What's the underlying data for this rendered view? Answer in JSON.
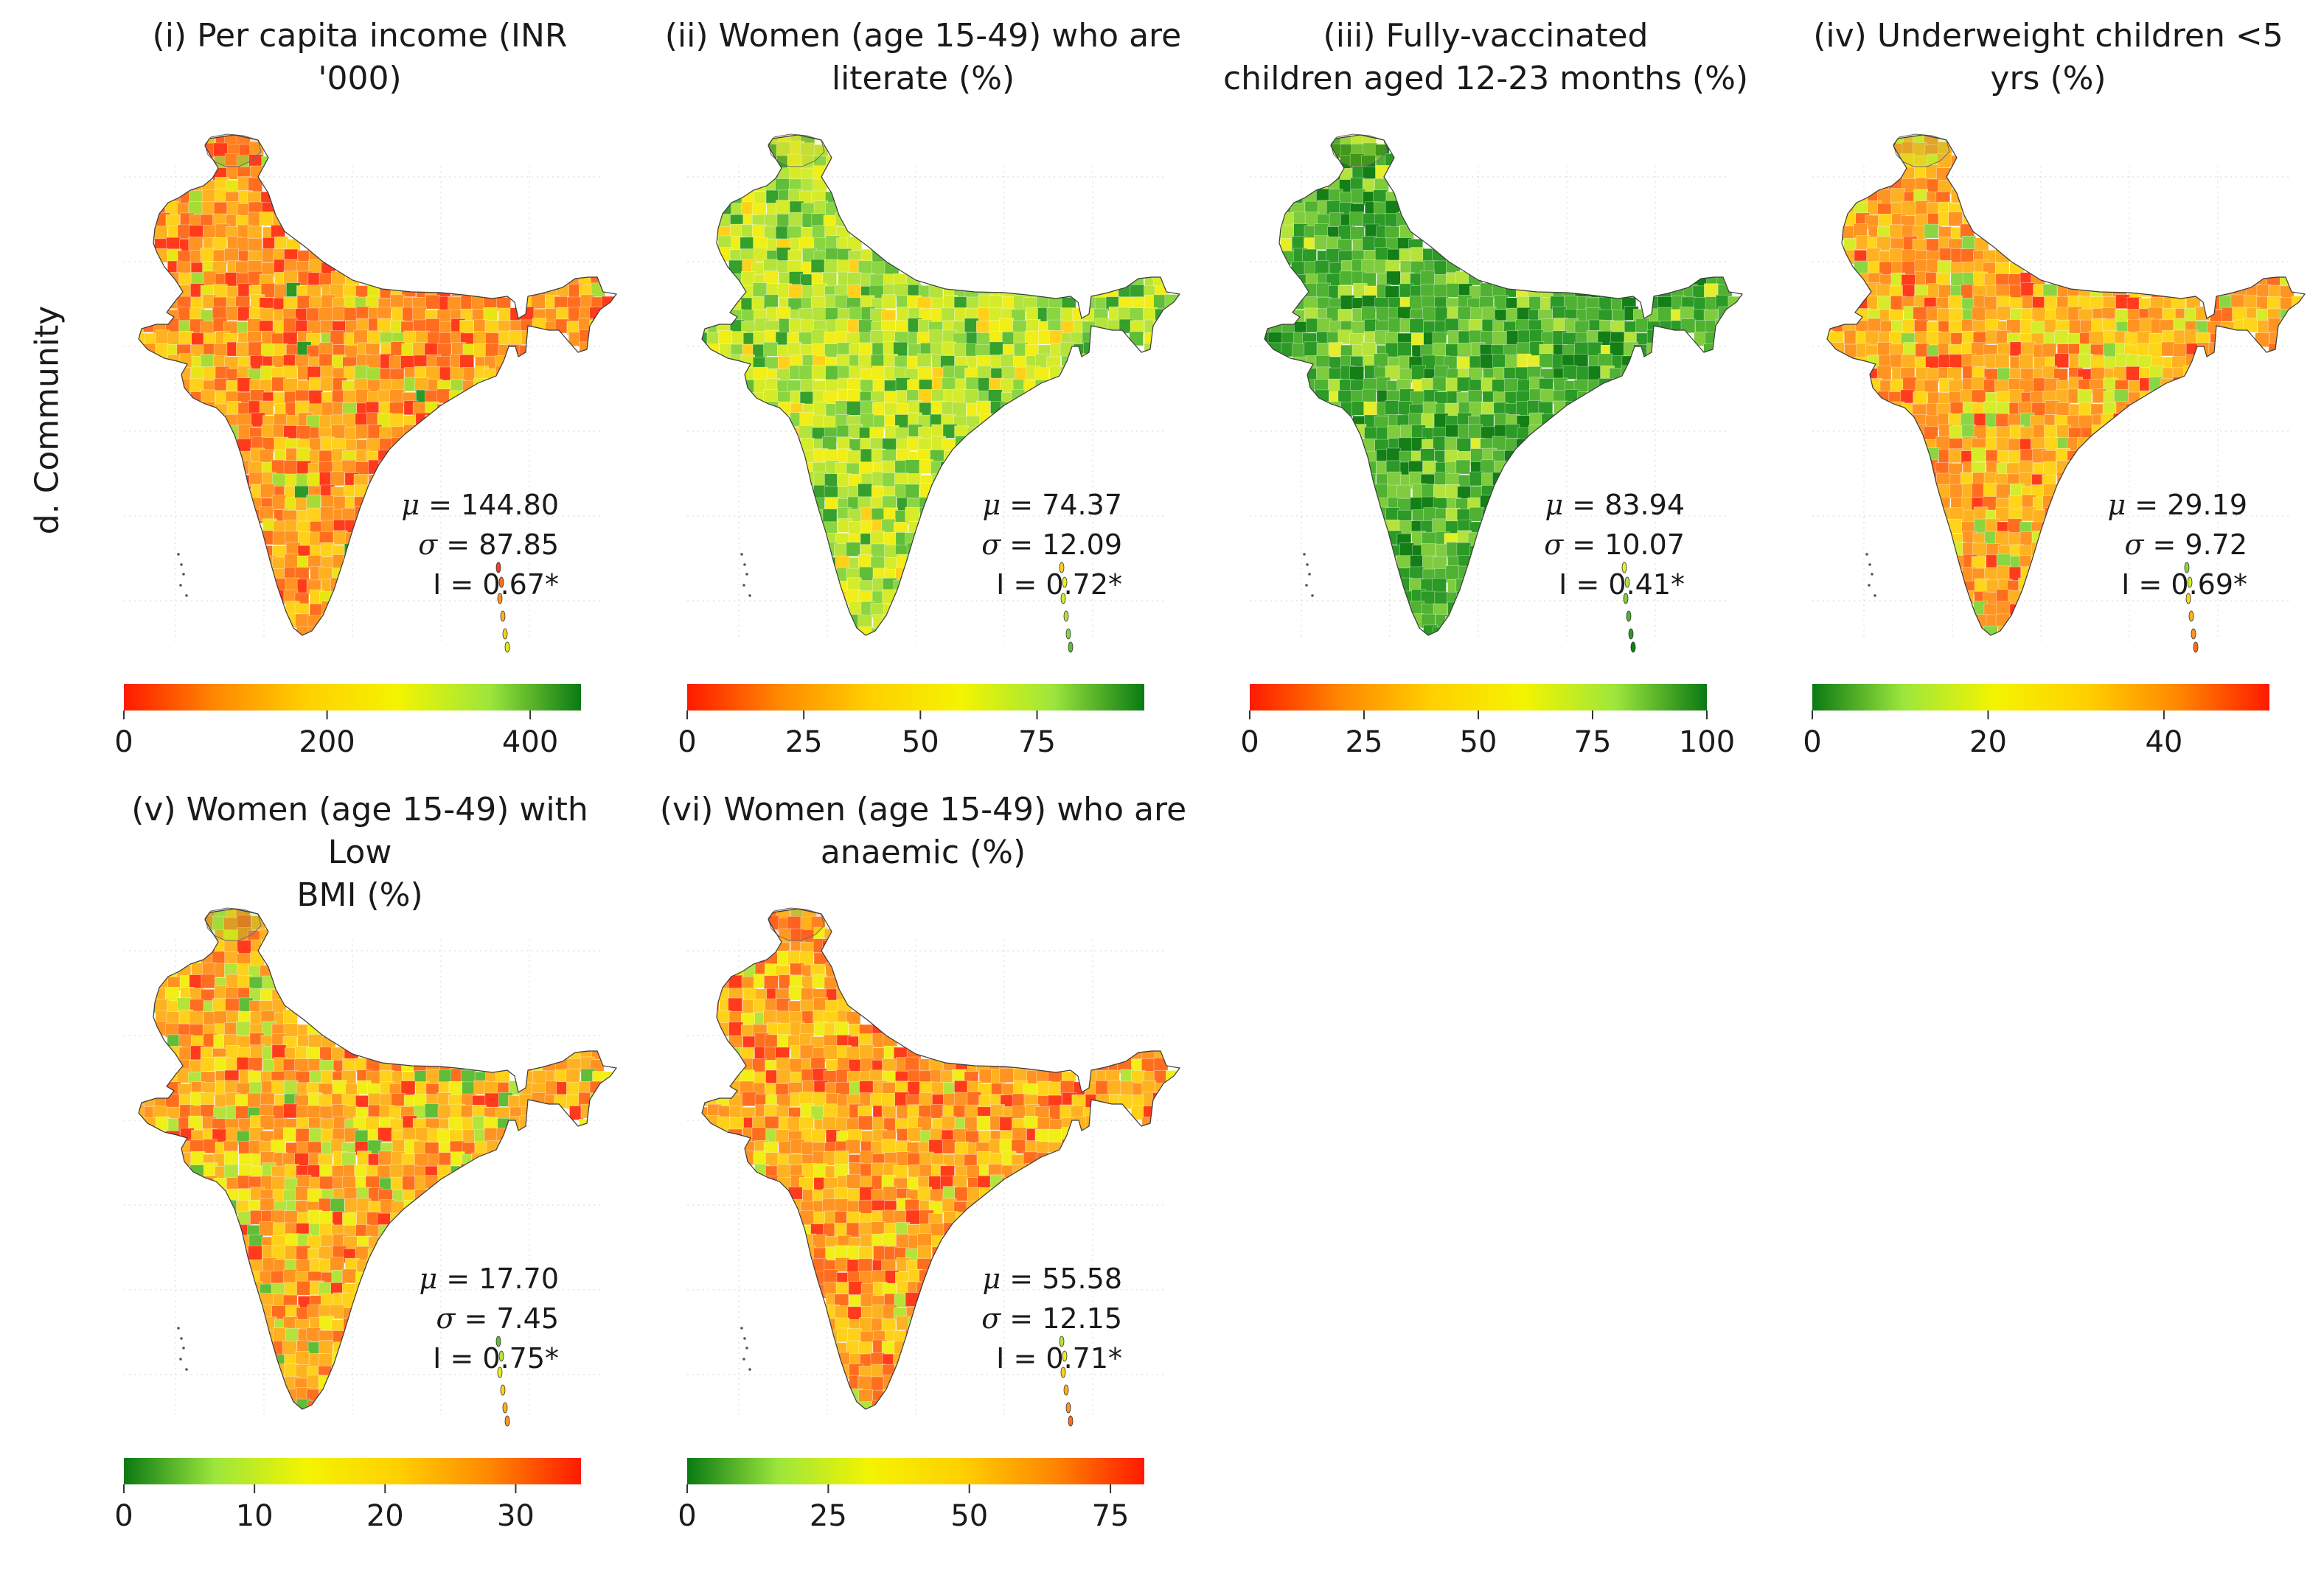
{
  "row_label": "d. Community",
  "panels": [
    {
      "title": "(i) Per capita income (INR '000)",
      "mu": "144.80",
      "sigma": "87.85",
      "moran_i": "0.67*",
      "legend": {
        "colors": [
          "#ff1a00",
          "#ff8800",
          "#ffd000",
          "#f4f400",
          "#9de63c",
          "#0a7a14"
        ],
        "ticks": [
          "0",
          "200",
          "400"
        ],
        "tick_values": [
          0,
          200,
          400
        ],
        "range": [
          0,
          450
        ]
      },
      "map_palette": [
        "#ff3b1c",
        "#ff6e1f",
        "#ff9422",
        "#ffb221",
        "#ffd11a",
        "#e8e614",
        "#a7dc36",
        "#2a9a25"
      ],
      "map_weights": [
        2,
        4,
        5,
        4,
        3,
        1,
        1,
        0.3
      ]
    },
    {
      "title": "(ii) Women (age 15-49) who are literate (%)",
      "mu": "74.37",
      "sigma": "12.09",
      "moran_i": "0.72*",
      "legend": {
        "colors": [
          "#ff1a00",
          "#ff8800",
          "#ffd000",
          "#f4f400",
          "#9de63c",
          "#0a7a14"
        ],
        "ticks": [
          "0",
          "25",
          "50",
          "75"
        ],
        "tick_values": [
          0,
          25,
          50,
          75
        ],
        "range": [
          0,
          98
        ]
      },
      "map_palette": [
        "#ffd11a",
        "#f1ee18",
        "#d6ec2a",
        "#b4e33c",
        "#8ad542",
        "#5fbd38",
        "#36a02c"
      ],
      "map_weights": [
        1,
        3,
        4,
        4,
        3,
        2,
        1.5
      ]
    },
    {
      "title": "(iii) Fully-vaccinated children aged 12-23 months (%)",
      "mu": "83.94",
      "sigma": "10.07",
      "moran_i": "0.41*",
      "legend": {
        "colors": [
          "#ff1a00",
          "#ff8800",
          "#ffd000",
          "#f4f400",
          "#9de63c",
          "#0a7a14"
        ],
        "ticks": [
          "0",
          "25",
          "50",
          "75",
          "100"
        ],
        "tick_values": [
          0,
          25,
          50,
          75,
          100
        ],
        "range": [
          0,
          100
        ]
      },
      "map_palette": [
        "#e4ee2a",
        "#b4e33c",
        "#7fcc3e",
        "#4fb232",
        "#2c9a26",
        "#137f16"
      ],
      "map_weights": [
        0.7,
        1.5,
        3,
        5,
        5,
        2
      ]
    },
    {
      "title": "(iv) Underweight children <5 yrs (%)",
      "mu": "29.19",
      "sigma": "9.72",
      "moran_i": "0.69*",
      "legend": {
        "colors": [
          "#0a7a14",
          "#9de63c",
          "#f4f400",
          "#ffd000",
          "#ff8800",
          "#ff1a00"
        ],
        "ticks": [
          "0",
          "20",
          "40"
        ],
        "tick_values": [
          0,
          20,
          40
        ],
        "range": [
          0,
          52
        ]
      },
      "map_palette": [
        "#8ad542",
        "#d6ec2a",
        "#ffd51a",
        "#ffb221",
        "#ff9422",
        "#ff6e1f",
        "#ff3b1c"
      ],
      "map_weights": [
        0.7,
        1.5,
        3,
        4,
        4,
        2.5,
        1
      ]
    },
    {
      "title": "(v) Women (age 15-49) with Low BMI (%)",
      "mu": "17.70",
      "sigma": "7.45",
      "moran_i": "0.75*",
      "legend": {
        "colors": [
          "#0a7a14",
          "#9de63c",
          "#f4f400",
          "#ffd000",
          "#ff8800",
          "#ff1a00"
        ],
        "ticks": [
          "0",
          "10",
          "20",
          "30"
        ],
        "tick_values": [
          0,
          10,
          20,
          30
        ],
        "range": [
          0,
          35
        ]
      },
      "map_palette": [
        "#5fbd38",
        "#b4e33c",
        "#f1ee18",
        "#ffd11a",
        "#ffb221",
        "#ff9422",
        "#ff6e1f",
        "#ff3b1c"
      ],
      "map_weights": [
        0.6,
        1.3,
        2,
        3,
        4,
        3.5,
        2,
        0.8
      ]
    },
    {
      "title": "(vi) Women (age 15-49) who are anaemic (%)",
      "mu": "55.58",
      "sigma": "12.15",
      "moran_i": "0.71*",
      "legend": {
        "colors": [
          "#0a7a14",
          "#9de63c",
          "#f4f400",
          "#ffd000",
          "#ff8800",
          "#ff1a00"
        ],
        "ticks": [
          "0",
          "25",
          "50",
          "75"
        ],
        "tick_values": [
          0,
          25,
          50,
          75
        ],
        "range": [
          0,
          81
        ]
      },
      "map_palette": [
        "#b4e33c",
        "#f1ee18",
        "#ffd11a",
        "#ffb221",
        "#ff9422",
        "#ff6e1f",
        "#ff3b1c"
      ],
      "map_weights": [
        0.5,
        1.5,
        2.5,
        4,
        4,
        3,
        1.5
      ]
    }
  ]
}
